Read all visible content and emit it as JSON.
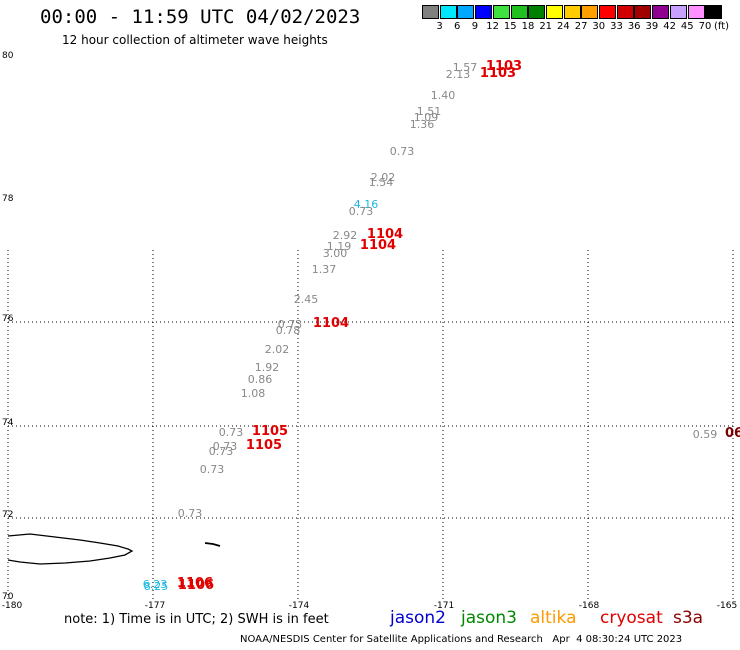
{
  "header": {
    "title": "00:00 - 11:59 UTC 04/02/2023",
    "subtitle": "12 hour collection of altimeter wave heights"
  },
  "scale": {
    "colors": [
      "#808080",
      "#00e8ff",
      "#00a8ff",
      "#0000ff",
      "#40e040",
      "#20c020",
      "#008000",
      "#ffff00",
      "#ffcc00",
      "#ffa000",
      "#ff0000",
      "#d00000",
      "#a00000",
      "#900090",
      "#c8a0ff",
      "#ff90ff",
      "#000000"
    ],
    "labels": [
      "3",
      "6",
      "9",
      "12",
      "15",
      "18",
      "21",
      "24",
      "27",
      "30",
      "33",
      "36",
      "39",
      "42",
      "45",
      "70"
    ],
    "unit": "(ft)"
  },
  "axes": {
    "lat_labels": [
      "80",
      "78",
      "76",
      "74",
      "72",
      "70"
    ],
    "lon_labels": [
      "-180",
      "-177",
      "-174",
      "-171",
      "-168",
      "-165"
    ]
  },
  "map": {
    "wave_heights": [
      {
        "text": "1.57",
        "color": "gray"
      },
      {
        "text": "2.13",
        "color": "gray"
      },
      {
        "text": "1.40",
        "color": "gray"
      },
      {
        "text": "1.51",
        "color": "gray"
      },
      {
        "text": "1.09",
        "color": "gray"
      },
      {
        "text": "1.36",
        "color": "gray"
      },
      {
        "text": "0.73",
        "color": "gray"
      },
      {
        "text": "2.02",
        "color": "gray"
      },
      {
        "text": "1.54",
        "color": "gray"
      },
      {
        "text": "4.16",
        "color": "cyan"
      },
      {
        "text": "0.73",
        "color": "gray"
      },
      {
        "text": "2.92",
        "color": "gray"
      },
      {
        "text": "1.19",
        "color": "gray"
      },
      {
        "text": "3.00",
        "color": "gray"
      },
      {
        "text": "1.37",
        "color": "gray"
      },
      {
        "text": "2.45",
        "color": "gray"
      },
      {
        "text": "0.73",
        "color": "gray"
      },
      {
        "text": "0.78",
        "color": "gray"
      },
      {
        "text": "2.02",
        "color": "gray"
      },
      {
        "text": "1.92",
        "color": "gray"
      },
      {
        "text": "0.86",
        "color": "gray"
      },
      {
        "text": "1.08",
        "color": "gray"
      },
      {
        "text": "0.73",
        "color": "gray"
      },
      {
        "text": "0.73",
        "color": "gray"
      },
      {
        "text": "0.73",
        "color": "gray"
      },
      {
        "text": "0.73",
        "color": "gray"
      },
      {
        "text": "0.73",
        "color": "gray"
      },
      {
        "text": "0.59",
        "color": "gray"
      },
      {
        "text": "6.23",
        "color": "cyan"
      },
      {
        "text": "8.25",
        "color": "cyan"
      }
    ],
    "times": [
      {
        "text": "1103",
        "color": "red"
      },
      {
        "text": "1103",
        "color": "red"
      },
      {
        "text": "1104",
        "color": "red"
      },
      {
        "text": "1104",
        "color": "red"
      },
      {
        "text": "1104",
        "color": "red"
      },
      {
        "text": "1105",
        "color": "red"
      },
      {
        "text": "1105",
        "color": "red"
      },
      {
        "text": "1106",
        "color": "red"
      },
      {
        "text": "1106",
        "color": "red"
      },
      {
        "text": "06",
        "color": "darkred"
      }
    ]
  },
  "legend": {
    "note": "note: 1) Time is in UTC; 2) SWH is in feet",
    "satellites": [
      {
        "name": "jason2",
        "color": "#0000d0"
      },
      {
        "name": "jason3",
        "color": "#008800"
      },
      {
        "name": "altika",
        "color": "#ff9900"
      },
      {
        "name": "cryosat",
        "color": "#e00000"
      },
      {
        "name": "s3a",
        "color": "#8b0000"
      }
    ]
  },
  "footer": {
    "credit": "NOAA/NESDIS Center for Satellite Applications and Research",
    "timestamp": "Apr  4 08:30:24 UTC 2023"
  }
}
